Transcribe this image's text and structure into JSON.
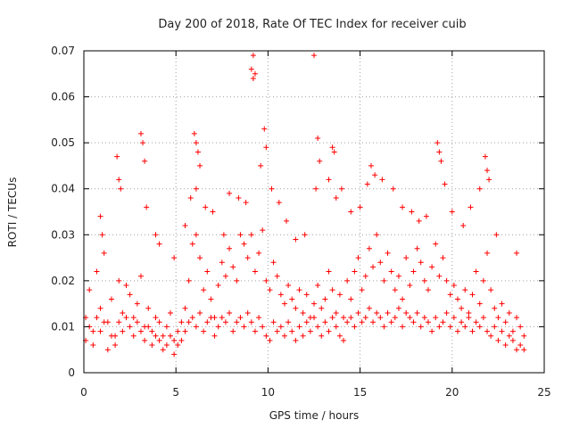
{
  "chart_data": {
    "type": "scatter",
    "title": "Day 200 of 2018, Rate Of TEC Index for receiver cuib",
    "xlabel": "GPS time / hours",
    "ylabel": "ROTI / TECUs",
    "xlim": [
      0,
      25
    ],
    "ylim": [
      0,
      0.07
    ],
    "xticks": [
      0,
      5,
      10,
      15,
      20,
      25
    ],
    "xtick_labels": [
      "0",
      "5",
      "10",
      "15",
      "20",
      "25"
    ],
    "yticks": [
      0,
      0.01,
      0.02,
      0.03,
      0.04,
      0.05,
      0.06,
      0.07
    ],
    "ytick_labels": [
      "0",
      "0.01",
      "0.02",
      "0.03",
      "0.04",
      "0.05",
      "0.06",
      "0.07"
    ],
    "grid": true,
    "legend": "none",
    "marker": "+",
    "color": "#ff0000",
    "series": [
      {
        "x": [
          0.1,
          0.3,
          0.5,
          0.7,
          0.9,
          1.1,
          1.3,
          1.5,
          1.7,
          1.9,
          2.1,
          2.3,
          2.5,
          2.7,
          2.9,
          3.1,
          3.3,
          3.5,
          3.7,
          3.9,
          4.1,
          4.3,
          4.5,
          4.7,
          4.9,
          5.1,
          5.3,
          5.5,
          5.7,
          5.9,
          6.1,
          6.3,
          6.5,
          6.7,
          6.9,
          7.1,
          7.3,
          7.5,
          7.7,
          7.9,
          8.1,
          8.3,
          8.5,
          8.7,
          8.9,
          9.1,
          9.3,
          9.5,
          9.7,
          9.9,
          10.1,
          10.3,
          10.5,
          10.7,
          10.9,
          11.1,
          11.3,
          11.5,
          11.7,
          11.9,
          12.1,
          12.3,
          12.5,
          12.7,
          12.9,
          13.1,
          13.3,
          13.5,
          13.7,
          13.9,
          14.1,
          14.3,
          14.5,
          14.7,
          14.9,
          15.1,
          15.3,
          15.5,
          15.7,
          15.9,
          16.1,
          16.3,
          16.5,
          16.7,
          16.9,
          17.1,
          17.3,
          17.5,
          17.7,
          17.9,
          18.1,
          18.3,
          18.5,
          18.7,
          18.9,
          19.1,
          19.3,
          19.5,
          19.7,
          19.9,
          20.1,
          20.3,
          20.5,
          20.7,
          20.9,
          21.1,
          21.3,
          21.5,
          21.7,
          21.9,
          22.1,
          22.3,
          22.5,
          22.7,
          22.9,
          23.1,
          23.3,
          23.5,
          23.7,
          23.9
        ],
        "y": [
          0.012,
          0.018,
          0.009,
          0.022,
          0.014,
          0.026,
          0.011,
          0.016,
          0.008,
          0.02,
          0.013,
          0.019,
          0.017,
          0.012,
          0.015,
          0.021,
          0.01,
          0.014,
          0.009,
          0.012,
          0.011,
          0.008,
          0.01,
          0.013,
          0.007,
          0.009,
          0.011,
          0.014,
          0.02,
          0.028,
          0.03,
          0.025,
          0.018,
          0.022,
          0.016,
          0.012,
          0.019,
          0.024,
          0.021,
          0.027,
          0.023,
          0.02,
          0.03,
          0.028,
          0.025,
          0.03,
          0.022,
          0.026,
          0.031,
          0.02,
          0.018,
          0.024,
          0.021,
          0.017,
          0.015,
          0.019,
          0.016,
          0.014,
          0.018,
          0.013,
          0.017,
          0.012,
          0.015,
          0.019,
          0.014,
          0.016,
          0.022,
          0.018,
          0.013,
          0.017,
          0.012,
          0.02,
          0.016,
          0.022,
          0.025,
          0.018,
          0.021,
          0.027,
          0.023,
          0.03,
          0.024,
          0.02,
          0.026,
          0.022,
          0.018,
          0.021,
          0.016,
          0.025,
          0.019,
          0.022,
          0.027,
          0.024,
          0.02,
          0.018,
          0.023,
          0.028,
          0.021,
          0.025,
          0.02,
          0.017,
          0.019,
          0.016,
          0.014,
          0.018,
          0.013,
          0.017,
          0.022,
          0.015,
          0.02,
          0.026,
          0.018,
          0.014,
          0.012,
          0.015,
          0.011,
          0.013,
          0.009,
          0.012,
          0.01,
          0.008
        ]
      },
      {
        "x": [
          0.1,
          0.3,
          0.5,
          0.7,
          0.9,
          1.1,
          1.3,
          1.5,
          1.7,
          1.9,
          2.1,
          2.3,
          2.5,
          2.7,
          2.9,
          3.1,
          3.3,
          3.5,
          3.7,
          3.9,
          4.1,
          4.3,
          4.5,
          4.7,
          4.9,
          5.1,
          5.3,
          5.5,
          5.7,
          5.9,
          6.1,
          6.3,
          6.5,
          6.7,
          6.9,
          7.1,
          7.3,
          7.5,
          7.7,
          7.9,
          8.1,
          8.3,
          8.5,
          8.7,
          8.9,
          9.1,
          9.3,
          9.5,
          9.7,
          9.9,
          10.1,
          10.3,
          10.5,
          10.7,
          10.9,
          11.1,
          11.3,
          11.5,
          11.7,
          11.9,
          12.1,
          12.3,
          12.5,
          12.7,
          12.9,
          13.1,
          13.3,
          13.5,
          13.7,
          13.9,
          14.1,
          14.3,
          14.5,
          14.7,
          14.9,
          15.1,
          15.3,
          15.5,
          15.7,
          15.9,
          16.1,
          16.3,
          16.5,
          16.7,
          16.9,
          17.1,
          17.3,
          17.5,
          17.7,
          17.9,
          18.1,
          18.3,
          18.5,
          18.7,
          18.9,
          19.1,
          19.3,
          19.5,
          19.7,
          19.9,
          20.1,
          20.3,
          20.5,
          20.7,
          20.9,
          21.1,
          21.3,
          21.5,
          21.7,
          21.9,
          22.1,
          22.3,
          22.5,
          22.7,
          22.9,
          23.1,
          23.3,
          23.5,
          23.7,
          23.9
        ],
        "y": [
          0.007,
          0.01,
          0.006,
          0.012,
          0.009,
          0.011,
          0.005,
          0.008,
          0.006,
          0.011,
          0.009,
          0.012,
          0.01,
          0.008,
          0.011,
          0.009,
          0.007,
          0.01,
          0.006,
          0.008,
          0.007,
          0.005,
          0.006,
          0.008,
          0.004,
          0.006,
          0.007,
          0.009,
          0.011,
          0.012,
          0.01,
          0.013,
          0.009,
          0.011,
          0.012,
          0.008,
          0.01,
          0.012,
          0.011,
          0.013,
          0.009,
          0.011,
          0.012,
          0.01,
          0.013,
          0.011,
          0.009,
          0.012,
          0.01,
          0.008,
          0.007,
          0.011,
          0.009,
          0.01,
          0.008,
          0.011,
          0.009,
          0.007,
          0.01,
          0.008,
          0.011,
          0.009,
          0.012,
          0.01,
          0.008,
          0.011,
          0.009,
          0.012,
          0.01,
          0.008,
          0.007,
          0.011,
          0.012,
          0.01,
          0.013,
          0.011,
          0.012,
          0.014,
          0.011,
          0.013,
          0.012,
          0.01,
          0.013,
          0.011,
          0.012,
          0.014,
          0.01,
          0.013,
          0.012,
          0.011,
          0.013,
          0.01,
          0.012,
          0.011,
          0.009,
          0.012,
          0.01,
          0.011,
          0.013,
          0.01,
          0.012,
          0.009,
          0.011,
          0.01,
          0.012,
          0.009,
          0.011,
          0.01,
          0.012,
          0.009,
          0.008,
          0.01,
          0.007,
          0.009,
          0.006,
          0.008,
          0.007,
          0.005,
          0.006,
          0.005
        ]
      },
      {
        "x": [
          0.9,
          1.0,
          1.8,
          1.9,
          2.0,
          3.1,
          3.2,
          3.3,
          3.4,
          3.9,
          4.1,
          4.9,
          5.5,
          5.8,
          6.0,
          6.1,
          6.2,
          6.3,
          6.1,
          6.6,
          7.0,
          7.6,
          7.9,
          8.4,
          8.8,
          9.1,
          9.2,
          9.3,
          9.2,
          9.6,
          9.8,
          9.9,
          10.2,
          10.6,
          11.0,
          11.5,
          12.0,
          12.5,
          12.6,
          12.7,
          12.8,
          13.3,
          13.5,
          13.6,
          13.7,
          14.0,
          14.5,
          15.0,
          15.4,
          15.6,
          15.8,
          16.2,
          16.8,
          17.3,
          17.8,
          18.2,
          18.6,
          19.2,
          19.3,
          19.4,
          19.6,
          20.0,
          20.6,
          21.0,
          21.5,
          21.8,
          21.9,
          22.0,
          22.4,
          23.5
        ],
        "y": [
          0.034,
          0.03,
          0.047,
          0.042,
          0.04,
          0.052,
          0.05,
          0.046,
          0.036,
          0.03,
          0.028,
          0.025,
          0.032,
          0.038,
          0.052,
          0.05,
          0.048,
          0.045,
          0.04,
          0.036,
          0.035,
          0.03,
          0.039,
          0.038,
          0.037,
          0.066,
          0.069,
          0.065,
          0.064,
          0.045,
          0.053,
          0.049,
          0.04,
          0.037,
          0.033,
          0.029,
          0.03,
          0.069,
          0.04,
          0.051,
          0.046,
          0.042,
          0.049,
          0.048,
          0.038,
          0.04,
          0.035,
          0.036,
          0.041,
          0.045,
          0.043,
          0.042,
          0.04,
          0.036,
          0.035,
          0.033,
          0.034,
          0.05,
          0.048,
          0.046,
          0.041,
          0.035,
          0.032,
          0.036,
          0.04,
          0.047,
          0.044,
          0.042,
          0.03,
          0.026
        ]
      }
    ]
  }
}
